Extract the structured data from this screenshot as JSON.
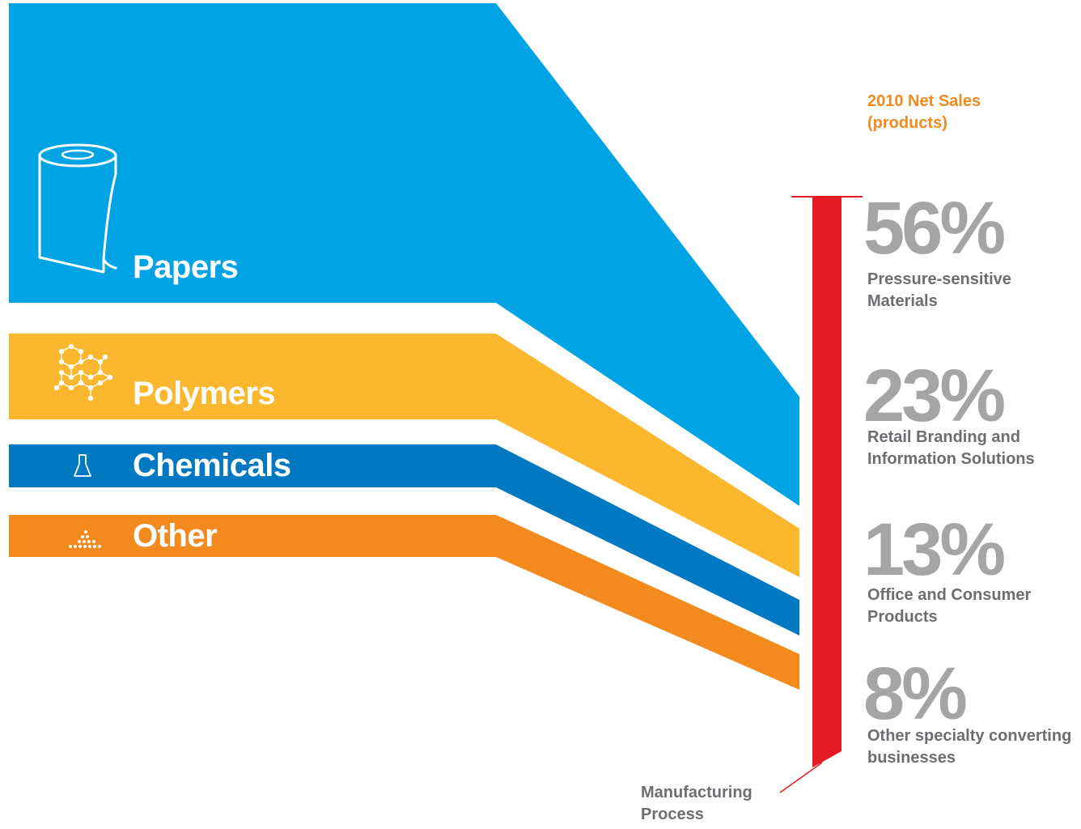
{
  "inputs": [
    {
      "label": "Papers",
      "color": "#00a4e4",
      "icon": "paper-roll-icon"
    },
    {
      "label": "Polymers",
      "color": "#fbb82f",
      "icon": "molecule-icon"
    },
    {
      "label": "Chemicals",
      "color": "#0079c2",
      "icon": "flask-icon"
    },
    {
      "label": "Other",
      "color": "#f28a1e",
      "icon": "dots-pyramid-icon"
    }
  ],
  "process": {
    "label": "Manufacturing Process",
    "color": "#e41c24"
  },
  "sales": {
    "heading": "2010 Net Sales (products)",
    "segments": [
      {
        "percent": "56%",
        "value": 56,
        "name": "Pressure-sensitive Materials"
      },
      {
        "percent": "23%",
        "value": 23,
        "name": "Retail Branding and Information Solutions"
      },
      {
        "percent": "13%",
        "value": 13,
        "name": "Office and Consumer Products"
      },
      {
        "percent": "8%",
        "value": 8,
        "name": "Other specialty converting businesses"
      }
    ]
  }
}
